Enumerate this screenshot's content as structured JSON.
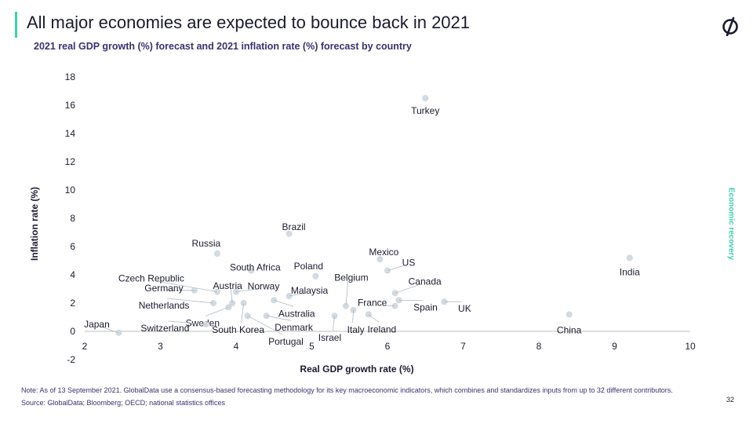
{
  "header": {
    "title": "All major economies are expected to bounce back in 2021",
    "subtitle": "2021 real GDP growth (%) forecast and 2021 inflation rate (%) forecast by country"
  },
  "side_label": "Economic recovery",
  "footer": {
    "note": "Note: As of 13 September 2021. GlobalData use a consensus-based forecasting methodology for its key macroeconomic indicators, which combines and standardizes inputs from up to 32 different contributors.",
    "source": "Source: GlobalData; Bloomberg; OECD; national statistics offices",
    "page_number": "32"
  },
  "colors": {
    "accent": "#3ecfae",
    "marker": "#d3dce3",
    "text_dark": "#1b1b2e",
    "text_purple": "#3a3170"
  },
  "logo_icon": "globaldata-logo-icon",
  "chart_data": {
    "type": "scatter",
    "xlabel": "Real GDP growth rate (%)",
    "ylabel": "Inflation rate (%)",
    "xlim": [
      2,
      10
    ],
    "ylim": [
      -2,
      18
    ],
    "xticks": [
      "2",
      "3",
      "4",
      "5",
      "6",
      "7",
      "8",
      "9",
      "10"
    ],
    "yticks": [
      "-2",
      "0",
      "2",
      "4",
      "6",
      "8",
      "10",
      "12",
      "14",
      "16",
      "18"
    ],
    "grid": false,
    "points": [
      {
        "label": "Turkey",
        "x": 6.5,
        "y": 16.5
      },
      {
        "label": "Brazil",
        "x": 4.7,
        "y": 6.9
      },
      {
        "label": "Russia",
        "x": 3.75,
        "y": 5.5
      },
      {
        "label": "South Africa",
        "x": 4.2,
        "y": 4.3
      },
      {
        "label": "Mexico",
        "x": 5.9,
        "y": 5.1
      },
      {
        "label": "US",
        "x": 6.0,
        "y": 4.3
      },
      {
        "label": "India",
        "x": 9.2,
        "y": 5.2
      },
      {
        "label": "Poland",
        "x": 5.05,
        "y": 3.9
      },
      {
        "label": "Belgium",
        "x": 5.45,
        "y": 1.8
      },
      {
        "label": "Canada",
        "x": 6.1,
        "y": 2.7
      },
      {
        "label": "France",
        "x": 6.1,
        "y": 1.8
      },
      {
        "label": "Spain",
        "x": 6.15,
        "y": 2.2
      },
      {
        "label": "UK",
        "x": 6.75,
        "y": 2.1
      },
      {
        "label": "Ireland",
        "x": 5.75,
        "y": 1.2
      },
      {
        "label": "Italy",
        "x": 5.55,
        "y": 1.5
      },
      {
        "label": "Israel",
        "x": 5.3,
        "y": 1.1
      },
      {
        "label": "China",
        "x": 8.4,
        "y": 1.2
      },
      {
        "label": "Malaysia",
        "x": 4.7,
        "y": 2.5
      },
      {
        "label": "Australia",
        "x": 4.5,
        "y": 2.2
      },
      {
        "label": "Norway",
        "x": 4.0,
        "y": 2.8
      },
      {
        "label": "Austria",
        "x": 3.95,
        "y": 2.0
      },
      {
        "label": "Czech Republic",
        "x": 3.75,
        "y": 2.8
      },
      {
        "label": "Germany",
        "x": 3.45,
        "y": 2.9
      },
      {
        "label": "Netherlands",
        "x": 3.7,
        "y": 2.0
      },
      {
        "label": "Sweden",
        "x": 3.9,
        "y": 1.7
      },
      {
        "label": "South Korea",
        "x": 4.1,
        "y": 2.0
      },
      {
        "label": "Switzerland",
        "x": 3.6,
        "y": 0.5
      },
      {
        "label": "Denmark",
        "x": 4.4,
        "y": 1.1
      },
      {
        "label": "Portugal",
        "x": 4.15,
        "y": 1.1
      },
      {
        "label": "Japan",
        "x": 2.45,
        "y": -0.1
      }
    ]
  }
}
